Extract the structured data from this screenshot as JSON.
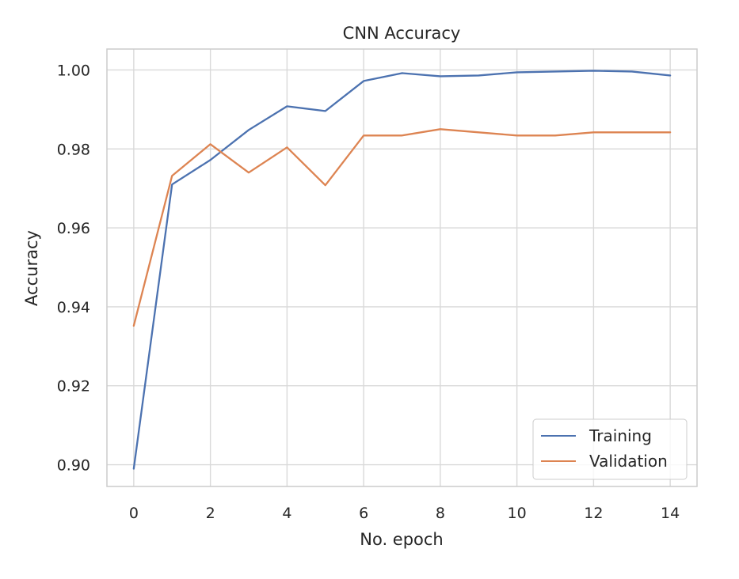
{
  "chart_data": {
    "type": "line",
    "title": "CNN Accuracy",
    "xlabel": "No. epoch",
    "ylabel": "Accuracy",
    "x": [
      0,
      1,
      2,
      3,
      4,
      5,
      6,
      7,
      8,
      9,
      10,
      11,
      12,
      13,
      14
    ],
    "xlim": [
      -0.7,
      14.7
    ],
    "ylim": [
      0.8945,
      1.0053
    ],
    "xticks": [
      0,
      2,
      4,
      6,
      8,
      10,
      12,
      14
    ],
    "xtick_labels": [
      "0",
      "2",
      "4",
      "6",
      "8",
      "10",
      "12",
      "14"
    ],
    "yticks": [
      0.9,
      0.92,
      0.94,
      0.96,
      0.98,
      1.0
    ],
    "ytick_labels": [
      "0.90",
      "0.92",
      "0.94",
      "0.96",
      "0.98",
      "1.00"
    ],
    "grid": true,
    "legend_position": "lower-right",
    "series": [
      {
        "name": "Training",
        "color": "#4c72b0",
        "values": [
          0.899,
          0.971,
          0.9772,
          0.9848,
          0.9908,
          0.9896,
          0.9972,
          0.9992,
          0.9984,
          0.9986,
          0.9994,
          0.9996,
          0.9998,
          0.9996,
          0.9986
        ]
      },
      {
        "name": "Validation",
        "color": "#dd8452",
        "values": [
          0.9352,
          0.9732,
          0.9812,
          0.974,
          0.9804,
          0.9708,
          0.9834,
          0.9834,
          0.985,
          0.9842,
          0.9834,
          0.9834,
          0.9842,
          0.9842,
          0.9842
        ]
      }
    ]
  }
}
